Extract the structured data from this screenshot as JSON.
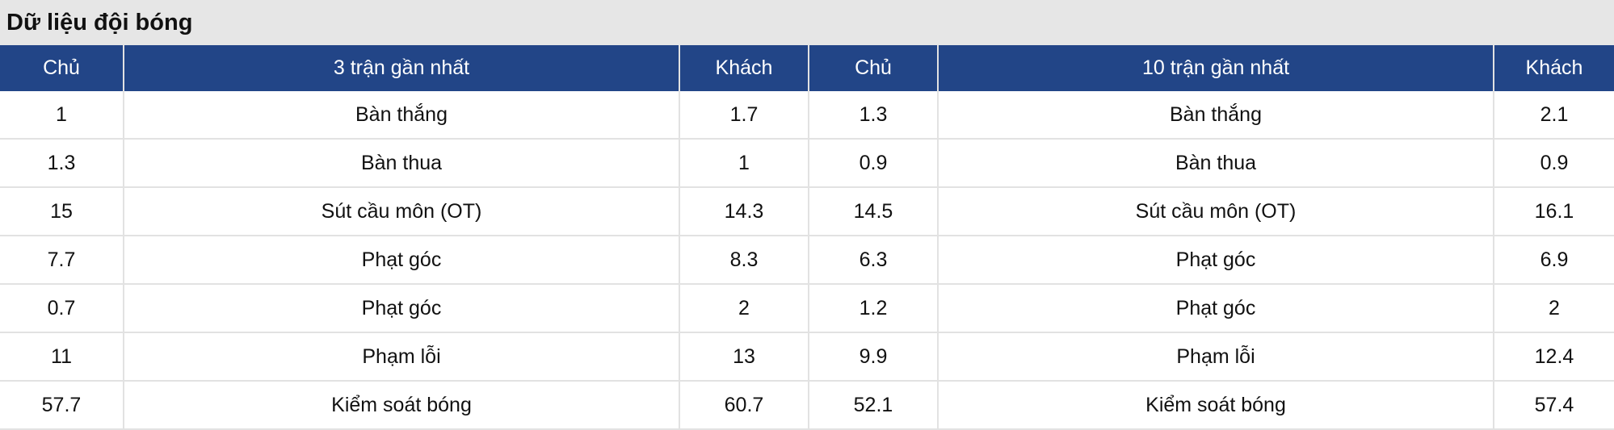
{
  "title": "Dữ liệu đội bóng",
  "header": [
    "Chủ",
    "3 trận gần nhất",
    "Khách",
    "Chủ",
    "10 trận gần nhất",
    "Khách"
  ],
  "header_color": "#224587",
  "rows": [
    [
      "1",
      "Bàn thắng",
      "1.7",
      "1.3",
      "Bàn thắng",
      "2.1"
    ],
    [
      "1.3",
      "Bàn thua",
      "1",
      "0.9",
      "Bàn thua",
      "0.9"
    ],
    [
      "15",
      "Sút cầu môn (OT)",
      "14.3",
      "14.5",
      "Sút cầu môn (OT)",
      "16.1"
    ],
    [
      "7.7",
      "Phạt góc",
      "8.3",
      "6.3",
      "Phạt góc",
      "6.9"
    ],
    [
      "0.7",
      "Phạt góc",
      "2",
      "1.2",
      "Phạt góc",
      "2"
    ],
    [
      "11",
      "Phạm lỗi",
      "13",
      "9.9",
      "Phạm lỗi",
      "12.4"
    ],
    [
      "57.7",
      "Kiểm soát bóng",
      "60.7",
      "52.1",
      "Kiểm soát bóng",
      "57.4"
    ]
  ]
}
